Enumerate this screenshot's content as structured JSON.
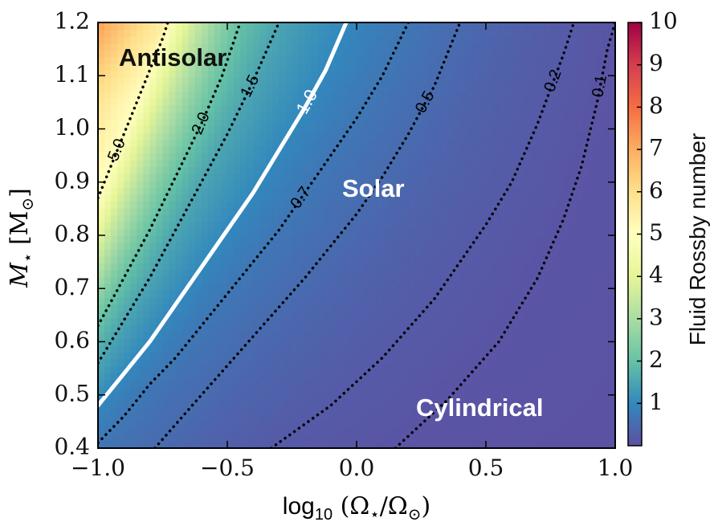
{
  "chart_data": {
    "type": "heatmap",
    "title": "",
    "x": {
      "label_main": "log",
      "label_sub": "10",
      "label_rest": " (Ω",
      "label_star": "⋆",
      "label_slash": "/Ω",
      "label_sun": "⊙",
      "label_close": ")",
      "range": [
        -1.0,
        1.0
      ],
      "ticks": [
        -1.0,
        -0.5,
        0.0,
        0.5,
        1.0
      ],
      "tick_labels": [
        "−1.0",
        "−0.5",
        "0.0",
        "0.5",
        "1.0"
      ]
    },
    "y": {
      "label_m": "M",
      "label_star": "⋆",
      "label_unit_open": " [M",
      "label_unit_sun": "⊙",
      "label_unit_close": "]",
      "range": [
        0.4,
        1.2
      ],
      "ticks": [
        0.4,
        0.5,
        0.6,
        0.7,
        0.8,
        0.9,
        1.0,
        1.1,
        1.2
      ],
      "tick_labels": [
        "0.4",
        "0.5",
        "0.6",
        "0.7",
        "0.8",
        "0.9",
        "1.0",
        "1.1",
        "1.2"
      ]
    },
    "colorbar": {
      "label": "Fluid Rossby number",
      "range": [
        0,
        10
      ],
      "ticks": [
        1,
        2,
        3,
        4,
        5,
        6,
        7,
        8,
        9,
        10
      ],
      "tick_labels": [
        "1",
        "2",
        "3",
        "4",
        "5",
        "6",
        "7",
        "8",
        "9",
        "10"
      ],
      "colormap": [
        "#5e4fa2",
        "#3288bd",
        "#66c2a5",
        "#abdda4",
        "#e6f598",
        "#ffffbf",
        "#fee08b",
        "#fdae61",
        "#f46d43",
        "#d53e4f",
        "#9e0142"
      ]
    },
    "contours": [
      {
        "level": 5.0,
        "label": "5.0",
        "style": "dotted",
        "color": "#000000",
        "points": [
          [
            -1.0,
            0.87
          ],
          [
            -0.95,
            0.93
          ],
          [
            -0.9,
            0.99
          ],
          [
            -0.85,
            1.05
          ],
          [
            -0.8,
            1.11
          ],
          [
            -0.75,
            1.17
          ],
          [
            -0.73,
            1.2
          ]
        ]
      },
      {
        "level": 2.0,
        "label": "2.0",
        "style": "dotted",
        "color": "#000000",
        "points": [
          [
            -1.0,
            0.63
          ],
          [
            -0.9,
            0.72
          ],
          [
            -0.8,
            0.81
          ],
          [
            -0.7,
            0.91
          ],
          [
            -0.6,
            1.01
          ],
          [
            -0.52,
            1.1
          ],
          [
            -0.45,
            1.2
          ]
        ]
      },
      {
        "level": 1.5,
        "label": "1.5",
        "style": "dotted",
        "color": "#000000",
        "points": [
          [
            -1.0,
            0.56
          ],
          [
            -0.9,
            0.64
          ],
          [
            -0.8,
            0.72
          ],
          [
            -0.7,
            0.81
          ],
          [
            -0.6,
            0.9
          ],
          [
            -0.5,
            0.99
          ],
          [
            -0.4,
            1.09
          ],
          [
            -0.3,
            1.2
          ]
        ]
      },
      {
        "level": 1.0,
        "label": "1.0",
        "style": "solid",
        "color": "#ffffff",
        "points": [
          [
            -1.0,
            0.48
          ],
          [
            -0.9,
            0.54
          ],
          [
            -0.8,
            0.6
          ],
          [
            -0.7,
            0.67
          ],
          [
            -0.6,
            0.74
          ],
          [
            -0.5,
            0.81
          ],
          [
            -0.4,
            0.88
          ],
          [
            -0.3,
            0.96
          ],
          [
            -0.2,
            1.04
          ],
          [
            -0.12,
            1.11
          ],
          [
            -0.04,
            1.2
          ]
        ]
      },
      {
        "level": 0.7,
        "label": "0.7",
        "style": "dotted",
        "color": "#000000",
        "points": [
          [
            -1.0,
            0.41
          ],
          [
            -0.9,
            0.46
          ],
          [
            -0.8,
            0.52
          ],
          [
            -0.7,
            0.57
          ],
          [
            -0.6,
            0.63
          ],
          [
            -0.5,
            0.69
          ],
          [
            -0.4,
            0.75
          ],
          [
            -0.3,
            0.81
          ],
          [
            -0.2,
            0.88
          ],
          [
            -0.1,
            0.95
          ],
          [
            0.0,
            1.02
          ],
          [
            0.1,
            1.1
          ],
          [
            0.2,
            1.2
          ]
        ]
      },
      {
        "level": 0.5,
        "label": "0.5",
        "style": "dotted",
        "color": "#000000",
        "points": [
          [
            -0.78,
            0.4
          ],
          [
            -0.6,
            0.5
          ],
          [
            -0.4,
            0.61
          ],
          [
            -0.2,
            0.72
          ],
          [
            0.0,
            0.84
          ],
          [
            0.1,
            0.91
          ],
          [
            0.2,
            0.99
          ],
          [
            0.3,
            1.08
          ],
          [
            0.4,
            1.2
          ]
        ]
      },
      {
        "level": 0.2,
        "label": "0.2",
        "style": "dotted",
        "color": "#000000",
        "points": [
          [
            -0.33,
            0.4
          ],
          [
            -0.1,
            0.48
          ],
          [
            0.1,
            0.57
          ],
          [
            0.3,
            0.68
          ],
          [
            0.5,
            0.82
          ],
          [
            0.6,
            0.9
          ],
          [
            0.7,
            1.01
          ],
          [
            0.8,
            1.14
          ],
          [
            0.84,
            1.2
          ]
        ]
      },
      {
        "level": 0.1,
        "label": "0.1",
        "style": "dotted",
        "color": "#000000",
        "points": [
          [
            0.15,
            0.4
          ],
          [
            0.35,
            0.49
          ],
          [
            0.55,
            0.6
          ],
          [
            0.7,
            0.72
          ],
          [
            0.8,
            0.83
          ],
          [
            0.87,
            0.93
          ],
          [
            0.93,
            1.05
          ],
          [
            0.97,
            1.15
          ],
          [
            1.0,
            1.2
          ]
        ]
      }
    ],
    "regions": [
      {
        "label": "Antisolar",
        "color": "#111111"
      },
      {
        "label": "Solar",
        "color": "#ffffff"
      },
      {
        "label": "Cylindrical",
        "color": "#ffffff"
      }
    ]
  }
}
